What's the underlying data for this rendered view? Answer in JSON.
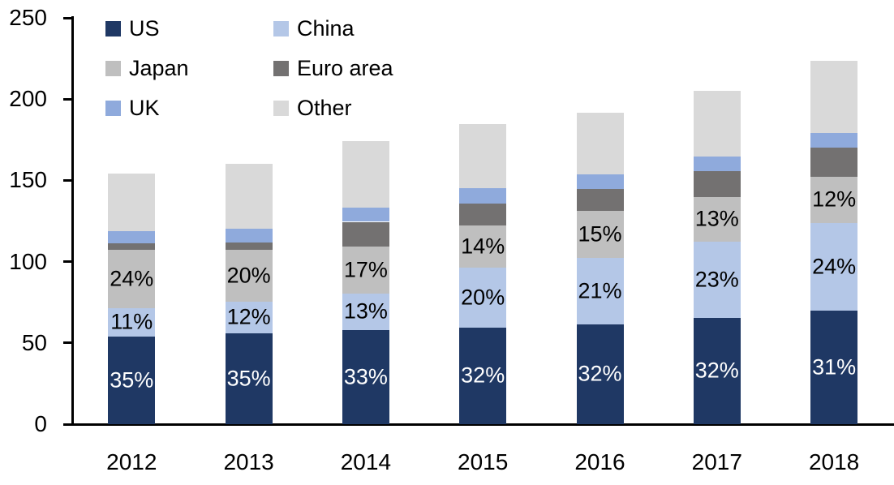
{
  "chart_data": {
    "type": "bar",
    "stacked": true,
    "title": "",
    "xlabel": "",
    "ylabel": "",
    "categories": [
      "2012",
      "2013",
      "2014",
      "2015",
      "2016",
      "2017",
      "2018"
    ],
    "series": [
      {
        "name": "US",
        "color": "#1F3864",
        "values": [
          54,
          56,
          58,
          59.5,
          61.5,
          65.5,
          70
        ],
        "segment_labels": [
          "35%",
          "35%",
          "33%",
          "32%",
          "32%",
          "32%",
          "31%"
        ],
        "label_color": "#ffffff"
      },
      {
        "name": "China",
        "color": "#B4C7E7",
        "values": [
          17.5,
          19.5,
          22.5,
          37,
          41,
          47,
          54
        ],
        "segment_labels": [
          "11%",
          "12%",
          "13%",
          "20%",
          "21%",
          "23%",
          "24%"
        ],
        "label_color": "#000000"
      },
      {
        "name": "Japan",
        "color": "#BFBFBF",
        "values": [
          36,
          32,
          29,
          26,
          28.5,
          27,
          28
        ],
        "segment_labels": [
          "24%",
          "20%",
          "17%",
          "14%",
          "15%",
          "13%",
          "12%"
        ],
        "label_color": "#000000"
      },
      {
        "name": "Euro area",
        "color": "#737171",
        "values": [
          4,
          4.5,
          15,
          13,
          13.5,
          16,
          18
        ],
        "segment_labels": null,
        "label_color": null
      },
      {
        "name": "UK",
        "color": "#8FAADC",
        "values": [
          7.5,
          8.5,
          8.5,
          9.5,
          9,
          9,
          9
        ],
        "segment_labels": null,
        "label_color": null
      },
      {
        "name": "Other",
        "color": "#D9D9D9",
        "values": [
          35,
          39.5,
          41,
          39.5,
          38,
          40.5,
          44.5
        ],
        "segment_labels": null,
        "label_color": null
      }
    ],
    "totals_approx": [
      154,
      160,
      174,
      184.5,
      191.5,
      205,
      223.5
    ],
    "y_axis": {
      "min": 0,
      "max": 250,
      "step": 50,
      "tick_labels": [
        "0",
        "50",
        "100",
        "150",
        "200",
        "250"
      ]
    },
    "grid": false,
    "legend_position": "top-left",
    "legend": [
      {
        "label": "US",
        "color": "#1F3864"
      },
      {
        "label": "China",
        "color": "#B4C7E7"
      },
      {
        "label": "Japan",
        "color": "#BFBFBF"
      },
      {
        "label": "Euro area",
        "color": "#737171"
      },
      {
        "label": "UK",
        "color": "#8FAADC"
      },
      {
        "label": "Other",
        "color": "#D9D9D9"
      }
    ],
    "axis_color": "#000000"
  }
}
